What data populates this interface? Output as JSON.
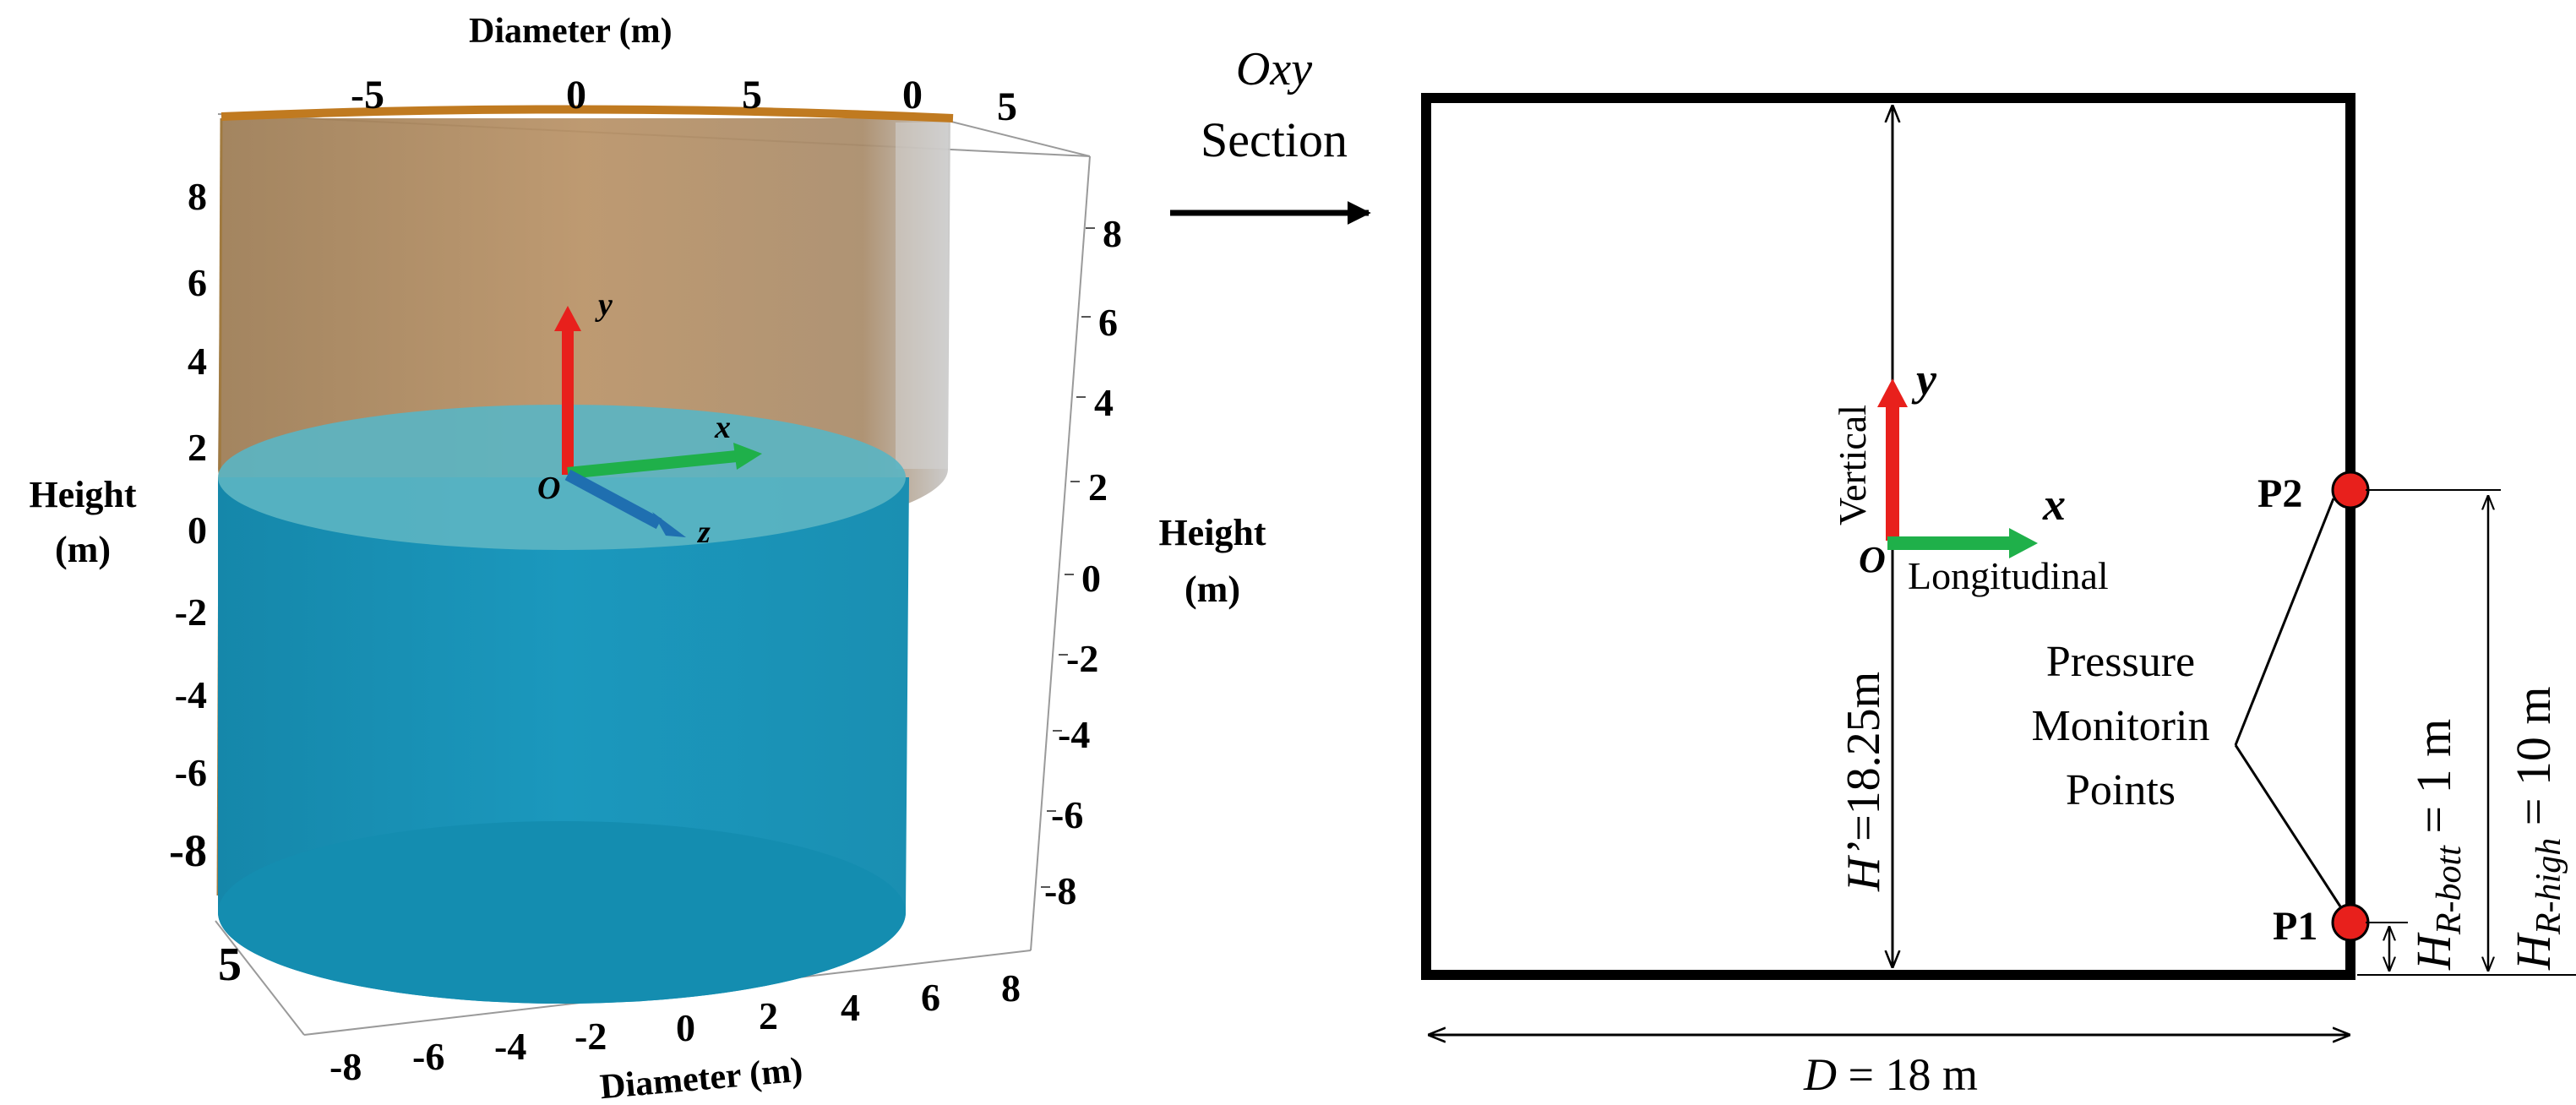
{
  "left_panel": {
    "top_axis_label": "Diameter (m)",
    "top_ticks": [
      "-5",
      "0",
      "5",
      "0",
      "5"
    ],
    "left_axis_label_line1": "Height",
    "left_axis_label_line2": "(m)",
    "left_ticks": [
      "8",
      "6",
      "4",
      "2",
      "0",
      "-2",
      "-4",
      "-6",
      "-8"
    ],
    "right_axis_label_line1": "Height",
    "right_axis_label_line2": "(m)",
    "right_ticks": [
      "8",
      "6",
      "4",
      "2",
      "0",
      "-2",
      "-4",
      "-6",
      "-8"
    ],
    "bottom_axis_label": "Diameter (m)",
    "bottom_ticks": [
      "-8",
      "-6",
      "-4",
      "-2",
      "0",
      "2",
      "4",
      "6",
      "8"
    ],
    "depth_tick": "5",
    "axis_x": "x",
    "axis_y": "y",
    "axis_z": "z",
    "origin": "O",
    "colors": {
      "liquid": "#1a94b8",
      "tank_wall": "#b58a55",
      "rim": "#c07a20",
      "x_arrow": "#1fb04a",
      "y_arrow": "#e8201c",
      "z_arrow": "#1f6fb0"
    }
  },
  "transition": {
    "section_line1": "Oxy",
    "section_line2": "Section"
  },
  "right_panel": {
    "axis_y": "y",
    "axis_x": "x",
    "origin": "O",
    "vertical_label": "Vertical",
    "longitudinal_label": "Longitudinal",
    "height_dim_italic": "H’",
    "height_dim_rest": "=18.25m",
    "p1_label": "P1",
    "p2_label": "P2",
    "callout_line1": "Pressure",
    "callout_line2": "Monitorin",
    "callout_line3": "Points",
    "hbott_H": "H",
    "hbott_sub": "R-bott",
    "hbott_value": " = 1 m",
    "hhigh_H": "H",
    "hhigh_sub": "R-high",
    "hhigh_value": " = 10 m",
    "diameter_D": "D",
    "diameter_value": " = 18 m",
    "colors": {
      "point": "#e8201c",
      "x_arrow": "#1fb04a",
      "y_arrow": "#e8201c"
    }
  }
}
